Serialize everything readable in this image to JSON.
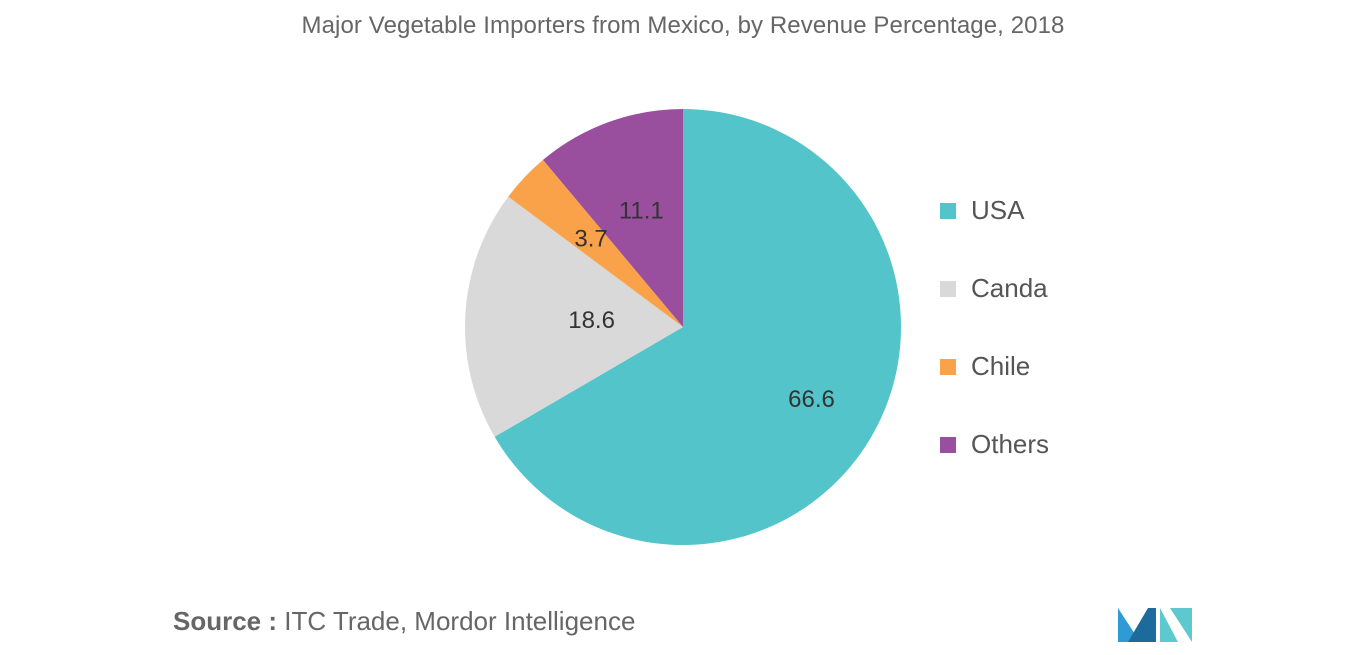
{
  "chart_data": {
    "type": "pie",
    "title": "Major Vegetable Importers from Mexico, by Revenue Percentage, 2018",
    "categories": [
      "USA",
      "Canda",
      "Chile",
      "Others"
    ],
    "values": [
      66.6,
      18.6,
      3.7,
      11.1
    ],
    "value_labels": [
      "66.6",
      "18.6",
      "3.7",
      "11.1"
    ],
    "colors": [
      "#52c4ca",
      "#d9d9d9",
      "#faa24a",
      "#9a4f9e"
    ],
    "legend_position": "right",
    "start_angle": "12 o'clock",
    "direction": "clockwise"
  },
  "source": {
    "label": "Source :",
    "text": "ITC Trade, Mordor Intelligence"
  },
  "logo": {
    "icon": "mordor-intelligence-logo",
    "colors": [
      "#2f9bd4",
      "#1c6b9c",
      "#5ec8cf"
    ]
  }
}
